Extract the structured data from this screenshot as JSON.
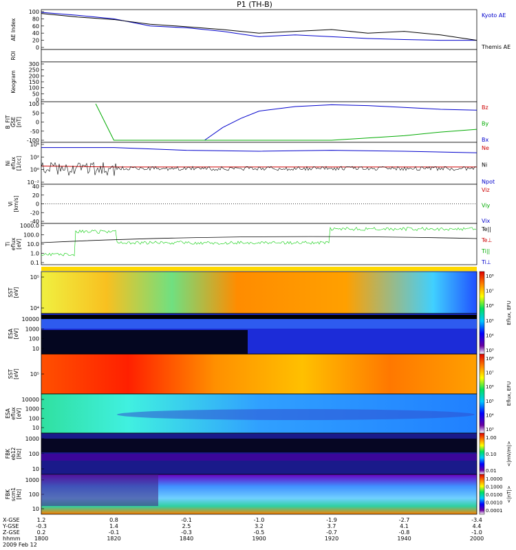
{
  "title": "P1  (TH-B)",
  "panels": {
    "ae": {
      "ylabel": "AE Index",
      "ticks": [
        "100",
        "80",
        "60",
        "40",
        "20",
        "0"
      ],
      "legend": [
        {
          "name": "Kyoto AE",
          "color": "#0000cc"
        },
        {
          "name": "Themis AE",
          "color": "#000000"
        }
      ]
    },
    "roi": {
      "ylabel": "ROI"
    },
    "keogram": {
      "ylabel": "Keogram",
      "ticks": [
        "300",
        "250",
        "200",
        "150",
        "100",
        "50",
        "0"
      ]
    },
    "bfit": {
      "ylabel": [
        "B_FIT",
        "GSE",
        "[nT]"
      ],
      "ticks": [
        "100",
        "50",
        "0",
        "-50",
        "-100"
      ],
      "legend": [
        {
          "name": "Bz",
          "color": "#cc0000"
        },
        {
          "name": "By",
          "color": "#00aa00"
        },
        {
          "name": "Bx",
          "color": "#0000cc"
        }
      ]
    },
    "ni": {
      "ylabel": [
        "Ni",
        "eflux",
        "[1/cc]"
      ],
      "ticks": [
        "10⁴",
        "10²",
        "10⁰",
        "10⁻²"
      ],
      "legend": [
        {
          "name": "Ne",
          "color": "#cc0000"
        },
        {
          "name": "Ni",
          "color": "#000000"
        },
        {
          "name": "Npot",
          "color": "#0000cc"
        }
      ]
    },
    "vi": {
      "ylabel": [
        "Vi",
        "[km/s]"
      ],
      "ticks": [
        "40",
        "20",
        "0",
        "-20",
        "-40"
      ],
      "legend": [
        {
          "name": "Viz",
          "color": "#cc0000"
        },
        {
          "name": "Viy",
          "color": "#00aa00"
        },
        {
          "name": "Vix",
          "color": "#0000cc"
        }
      ]
    },
    "te": {
      "ylabel": [
        "Ti",
        "eflux",
        "[eV]"
      ],
      "ticks": [
        "1000.0",
        "100.0",
        "10.0",
        "1.0",
        "0.1"
      ],
      "legend": [
        {
          "name": "Te||",
          "color": "#000000"
        },
        {
          "name": "Te⊥",
          "color": "#cc0000"
        },
        {
          "name": "Ti||",
          "color": "#00aa00"
        },
        {
          "name": "Ti⊥",
          "color": "#0000cc"
        }
      ]
    },
    "sst1": {
      "ylabel": [
        "SST",
        "[eV]"
      ],
      "ticks": [
        "10⁵",
        "10⁴"
      ]
    },
    "esa1": {
      "ylabel": [
        "ESA",
        "[eV]"
      ],
      "ticks": [
        "10000",
        "1000",
        "100",
        "10"
      ]
    },
    "sst2": {
      "ylabel": [
        "SST",
        "[eV]"
      ],
      "ticks": [
        "10⁵"
      ]
    },
    "esa2": {
      "ylabel": [
        "ESA",
        "eflux",
        "[eV]"
      ],
      "ticks": [
        "10000",
        "1000",
        "100",
        "10"
      ]
    },
    "fbk1": {
      "ylabel": [
        "FBK",
        "eb12",
        "[Hz]"
      ],
      "ticks": [
        "1000",
        "100",
        "10"
      ]
    },
    "fbk2": {
      "ylabel": [
        "FBK",
        "scm1",
        "[Hz]"
      ],
      "ticks": [
        "1000",
        "100",
        "10"
      ]
    }
  },
  "colorbars": {
    "eflux1": {
      "label": "Eflux, EFU",
      "ticks": [
        "10⁸",
        "10⁷",
        "10⁶",
        "10⁵",
        "10⁴",
        "10³"
      ]
    },
    "eflux2": {
      "label": "Eflux, EFU",
      "ticks": [
        "10⁸",
        "10⁷",
        "10⁶",
        "10⁵",
        "10⁴",
        "10³"
      ]
    },
    "fbk1": {
      "label": "<|mV/m|>",
      "ticks": [
        "1.00",
        "0.10",
        "0.01"
      ]
    },
    "fbk2": {
      "label": "<|nT|>",
      "ticks": [
        "1.0000",
        "0.1000",
        "0.0100",
        "0.0010",
        "0.0001"
      ]
    }
  },
  "xaxis": {
    "row_labels": [
      "X-GSE",
      "Y-GSE",
      "Z-GSE",
      "hhmm",
      "2009 Feb 12"
    ],
    "columns": [
      {
        "x": "1.2",
        "y": "-0.3",
        "z": "0.2",
        "t": "1800"
      },
      {
        "x": "0.8",
        "y": "1.4",
        "z": "-0.1",
        "t": "1820"
      },
      {
        "x": "-0.1",
        "y": "2.5",
        "z": "-0.3",
        "t": "1840"
      },
      {
        "x": "-1.0",
        "y": "3.2",
        "z": "-0.5",
        "t": "1900"
      },
      {
        "x": "-1.9",
        "y": "3.7",
        "z": "-0.7",
        "t": "1920"
      },
      {
        "x": "-2.7",
        "y": "4.1",
        "z": "-0.8",
        "t": "1940"
      },
      {
        "x": "-3.4",
        "y": "4.4",
        "z": "-1.0",
        "t": "2000"
      }
    ]
  },
  "chart_data": {
    "type": "line",
    "time_range": [
      "18:00",
      "20:00"
    ],
    "series": [
      {
        "name": "Kyoto AE",
        "panel": "AE Index",
        "x": [
          1800,
          1810,
          1820,
          1830,
          1840,
          1850,
          1900,
          1910,
          1920,
          1930,
          1940,
          1950,
          2000
        ],
        "values": [
          98,
          90,
          80,
          60,
          55,
          45,
          30,
          35,
          30,
          25,
          22,
          20,
          20
        ]
      },
      {
        "name": "Themis AE",
        "panel": "AE Index",
        "x": [
          1800,
          1810,
          1820,
          1830,
          1840,
          1850,
          1900,
          1910,
          1920,
          1930,
          1940,
          1950,
          2000
        ],
        "values": [
          95,
          85,
          78,
          65,
          58,
          50,
          40,
          45,
          50,
          40,
          45,
          35,
          20
        ]
      },
      {
        "name": "Bx",
        "panel": "B_FIT GSE",
        "x": [
          1845,
          1850,
          1855,
          1900,
          1910,
          1920,
          1930,
          1940,
          1950,
          2000
        ],
        "values": [
          -100,
          -30,
          20,
          60,
          85,
          95,
          90,
          80,
          70,
          65
        ]
      },
      {
        "name": "By",
        "panel": "B_FIT GSE",
        "x": [
          1815,
          1820,
          1920,
          1940,
          1950,
          2000
        ],
        "values": [
          100,
          -100,
          -100,
          -75,
          -55,
          -40
        ]
      },
      {
        "name": "Npot",
        "panel": "Ni",
        "x": [
          1800,
          1810,
          1820,
          1840,
          1900,
          1920,
          1940,
          2000
        ],
        "values": [
          10000,
          10000,
          10000,
          3000,
          2000,
          3000,
          2000,
          1000
        ]
      },
      {
        "name": "Ne",
        "panel": "Ni",
        "x": [
          1800,
          1820,
          1840,
          1900,
          1920,
          1940,
          2000
        ],
        "values": [
          3,
          2,
          2,
          2,
          2,
          2,
          2
        ]
      }
    ],
    "ylim_ae": [
      0,
      100
    ],
    "ylim_bfit": [
      -100,
      100
    ],
    "ylim_vi": [
      -50,
      50
    ]
  }
}
